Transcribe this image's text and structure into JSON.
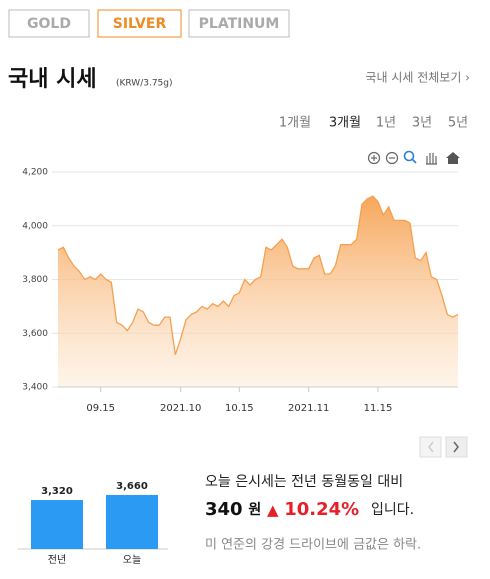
{
  "tabs": [
    "GOLD",
    "SILVER",
    "PLATINUM"
  ],
  "header": {
    "title": "국내 시세",
    "unit": "(KRW/3.75g)",
    "link": "국내 시세 전체보기 ›"
  },
  "periods": [
    "1개월",
    "3개월",
    "1년",
    "3년",
    "5년"
  ],
  "chart_data": [
    {
      "type": "area",
      "color": "#f5a04e",
      "categories": [
        null,
        null,
        null,
        null,
        null,
        null,
        null,
        null,
        "09.15",
        null,
        null,
        null,
        null,
        null,
        null,
        null,
        null,
        null,
        null,
        null,
        null,
        null,
        null,
        "2021.10",
        null,
        null,
        null,
        null,
        null,
        null,
        null,
        null,
        null,
        null,
        "10.15",
        null,
        null,
        null,
        null,
        null,
        null,
        null,
        null,
        null,
        null,
        null,
        null,
        "2021.11",
        null,
        null,
        null,
        null,
        null,
        null,
        null,
        null,
        null,
        null,
        null,
        null,
        "11.15",
        null,
        null,
        null,
        null,
        null,
        null,
        null,
        null,
        null,
        null,
        null,
        null,
        null,
        null,
        null
      ],
      "values": [
        3910,
        3920,
        3880,
        3850,
        3830,
        3800,
        3810,
        3800,
        3820,
        3800,
        3790,
        3640,
        3630,
        3610,
        3640,
        3690,
        3680,
        3640,
        3630,
        3630,
        3660,
        3660,
        3520,
        3580,
        3650,
        3670,
        3680,
        3700,
        3690,
        3710,
        3700,
        3720,
        3700,
        3740,
        3750,
        3800,
        3780,
        3800,
        3810,
        3920,
        3910,
        3930,
        3950,
        3920,
        3850,
        3840,
        3840,
        3840,
        3880,
        3890,
        3820,
        3820,
        3850,
        3930,
        3930,
        3930,
        3950,
        4080,
        4100,
        4110,
        4090,
        4040,
        4070,
        4020,
        4020,
        4020,
        4010,
        3880,
        3870,
        3900,
        3810,
        3800,
        3740,
        3670,
        3660,
        3670
      ],
      "ylim": [
        3400,
        4200
      ],
      "yticks": [
        {
          "value": 3400,
          "label": "3,400"
        },
        {
          "value": 3600,
          "label": "3,600"
        },
        {
          "value": 3800,
          "label": "3,800"
        },
        {
          "value": 4000,
          "label": "4,000"
        },
        {
          "value": 4200,
          "label": "4,200"
        }
      ],
      "grid": true
    },
    {
      "type": "bar",
      "color": "#2b9af3",
      "categories": [
        "전년",
        "오늘"
      ],
      "values": [
        3320,
        3660
      ],
      "value_labels": [
        "3,320",
        "3,660"
      ]
    }
  ],
  "summary": {
    "line1": "오늘 은시세는 전년 동월동일 대비",
    "diff": "340",
    "diff_unit": "원",
    "arrow": "▲",
    "percent": "10.24%",
    "suffix": "입니다.",
    "note": "미 연준의 강경 드라이브에 금값은 하락."
  }
}
